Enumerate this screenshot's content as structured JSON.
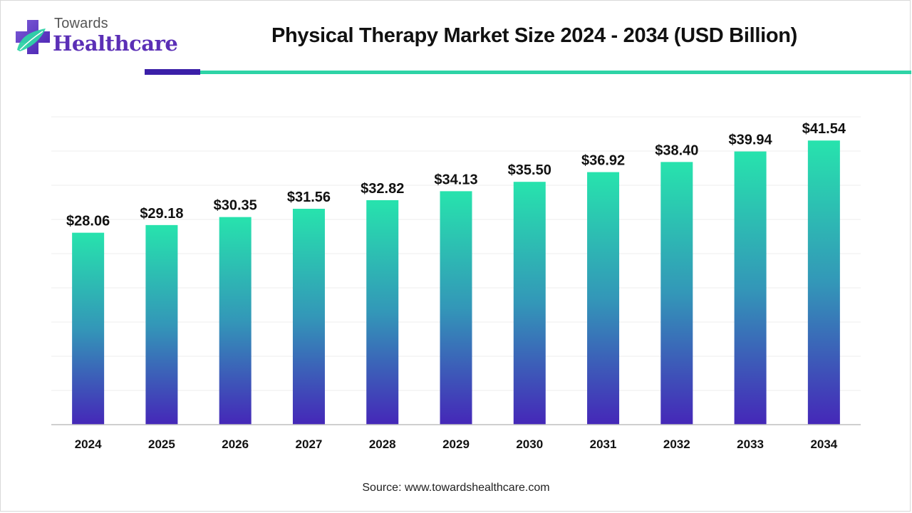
{
  "brand": {
    "line1": "Towards",
    "line2": "Healthcare"
  },
  "colors": {
    "bar_top": "#27e3ad",
    "bar_mid": "#3397b8",
    "bar_bottom": "#4527b8",
    "accent_dark": "#3b1fa8",
    "accent_teal": "#2ed3a6",
    "brand_purple": "#5b2fb6"
  },
  "chart_data": {
    "type": "bar",
    "title": "Physical Therapy Market Size 2024 - 2034 (USD Billion)",
    "categories": [
      "2024",
      "2025",
      "2026",
      "2027",
      "2028",
      "2029",
      "2030",
      "2031",
      "2032",
      "2033",
      "2034"
    ],
    "values": [
      28.06,
      29.18,
      30.35,
      31.56,
      32.82,
      34.13,
      35.5,
      36.92,
      38.4,
      39.94,
      41.54
    ],
    "value_labels": [
      "$28.06",
      "$29.18",
      "$30.35",
      "$31.56",
      "$32.82",
      "$34.13",
      "$35.50",
      "$36.92",
      "$38.40",
      "$39.94",
      "$41.54"
    ],
    "xlabel": "",
    "ylabel": "",
    "ylim": [
      0,
      45
    ],
    "grid": true,
    "legend": "none"
  },
  "source": "Source: www.towardshealthcare.com"
}
